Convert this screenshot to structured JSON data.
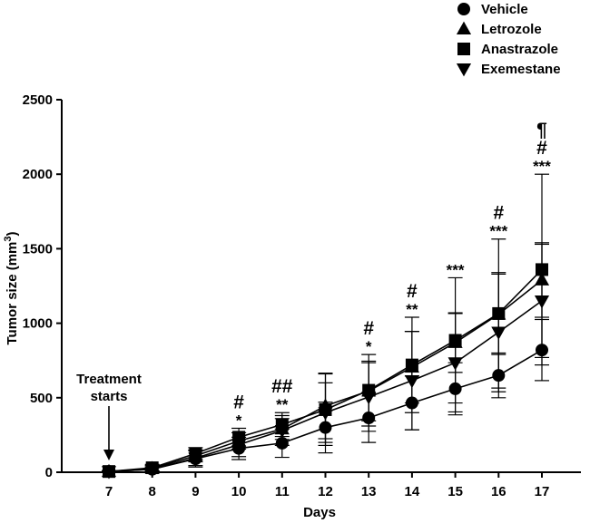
{
  "chart_data": {
    "type": "line",
    "xlabel": "Days",
    "ylabel_main": "Tumor size (mm",
    "ylabel_sup": "3",
    "ylabel_close": ")",
    "categories": [
      "7",
      "8",
      "9",
      "10",
      "11",
      "12",
      "13",
      "14",
      "15",
      "16",
      "17"
    ],
    "ylim": [
      0,
      2500
    ],
    "yticks": [
      0,
      500,
      1000,
      1500,
      2000,
      2500
    ],
    "series": [
      {
        "name": "Vehicle",
        "marker": "circle",
        "values": [
          5,
          20,
          90,
          160,
          195,
          300,
          365,
          465,
          560,
          650,
          820
        ],
        "errors": [
          5,
          15,
          55,
          75,
          95,
          170,
          165,
          180,
          175,
          150,
          205
        ]
      },
      {
        "name": "Letrozole",
        "marker": "triangle-up",
        "values": [
          5,
          25,
          110,
          210,
          290,
          445,
          545,
          705,
          870,
          1060,
          1290
        ],
        "errors": [
          5,
          20,
          40,
          55,
          70,
          220,
          200,
          240,
          200,
          270,
          250
        ]
      },
      {
        "name": "Anastrazole",
        "marker": "square",
        "values": [
          5,
          30,
          125,
          235,
          320,
          420,
          550,
          720,
          885,
          1065,
          1360
        ],
        "errors": [
          5,
          20,
          40,
          60,
          80,
          240,
          240,
          320,
          420,
          500,
          640
        ]
      },
      {
        "name": "Exemestane",
        "marker": "triangle-down",
        "values": [
          5,
          20,
          95,
          185,
          280,
          400,
          505,
          615,
          735,
          940,
          1150
        ],
        "errors": [
          5,
          15,
          50,
          80,
          100,
          200,
          230,
          330,
          330,
          400,
          380
        ]
      }
    ],
    "significance": [
      {
        "category": "10",
        "lines": [
          "#",
          "*"
        ]
      },
      {
        "category": "11",
        "lines": [
          "##",
          "**"
        ]
      },
      {
        "category": "13",
        "lines": [
          "#",
          "*"
        ]
      },
      {
        "category": "14",
        "lines": [
          "#",
          "**"
        ]
      },
      {
        "category": "15",
        "lines": [
          "***"
        ]
      },
      {
        "category": "16",
        "lines": [
          "#",
          "***"
        ]
      },
      {
        "category": "17",
        "lines": [
          "¶",
          "#",
          "***"
        ]
      }
    ],
    "annotation": {
      "line1": "Treatment",
      "line2": "starts",
      "category": "7"
    },
    "legend_position": "top-right"
  }
}
